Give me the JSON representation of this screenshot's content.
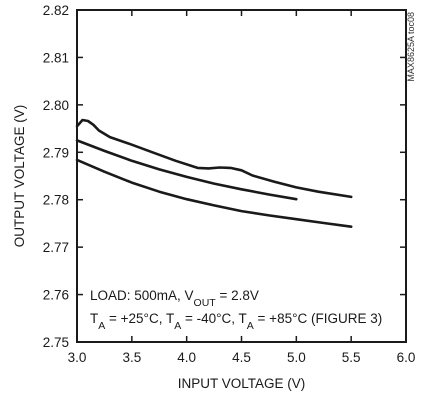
{
  "figure_code": "MAX8625A toc08",
  "chart_data": {
    "type": "line",
    "title": "",
    "xlabel": "INPUT VOLTAGE (V)",
    "ylabel": "OUTPUT VOLTAGE (V)",
    "xlim": [
      3.0,
      6.0
    ],
    "ylim": [
      2.75,
      2.82
    ],
    "x_ticks": [
      "3.0",
      "3.5",
      "4.0",
      "4.5",
      "5.0",
      "5.5",
      "6.0"
    ],
    "y_ticks": [
      "2.82",
      "2.81",
      "2.80",
      "2.79",
      "2.78",
      "2.77",
      "2.76",
      "2.75"
    ],
    "grid": false,
    "annotation": {
      "line1_prefix": "LOAD: 500mA, V",
      "line1_sub": "OUT",
      "line1_suffix": " = 2.8V",
      "line2": [
        {
          "text": "T",
          "sub": false
        },
        {
          "text": "A",
          "sub": true
        },
        {
          "text": " = +25°C, T",
          "sub": false
        },
        {
          "text": "A",
          "sub": true
        },
        {
          "text": " = -40°C, T",
          "sub": false
        },
        {
          "text": "A",
          "sub": true
        },
        {
          "text": " = +85°C (FIGURE 3)",
          "sub": false
        }
      ]
    },
    "series": [
      {
        "x": [
          3.0,
          3.05,
          3.1,
          3.15,
          3.2,
          3.3,
          3.5,
          3.7,
          3.9,
          4.1,
          4.2,
          4.3,
          4.4,
          4.5,
          4.6,
          4.8,
          5.0,
          5.2,
          5.5
        ],
        "y": [
          2.7955,
          2.7968,
          2.7966,
          2.7958,
          2.7946,
          2.7932,
          2.7916,
          2.7899,
          2.7882,
          2.7867,
          2.7866,
          2.7868,
          2.7867,
          2.7862,
          2.7851,
          2.7838,
          2.7826,
          2.7817,
          2.7806
        ]
      },
      {
        "x": [
          3.0,
          3.25,
          3.5,
          3.75,
          4.0,
          4.25,
          4.5,
          4.75,
          5.0
        ],
        "y": [
          2.7925,
          2.7903,
          2.7882,
          2.7864,
          2.7848,
          2.7834,
          2.7822,
          2.7811,
          2.7801
        ]
      },
      {
        "x": [
          3.0,
          3.25,
          3.5,
          3.75,
          4.0,
          4.25,
          4.5,
          4.75,
          5.0,
          5.25,
          5.5
        ],
        "y": [
          2.7884,
          2.7859,
          2.7836,
          2.7817,
          2.7801,
          2.7788,
          2.7776,
          2.7767,
          2.7759,
          2.7751,
          2.7743
        ]
      }
    ]
  }
}
